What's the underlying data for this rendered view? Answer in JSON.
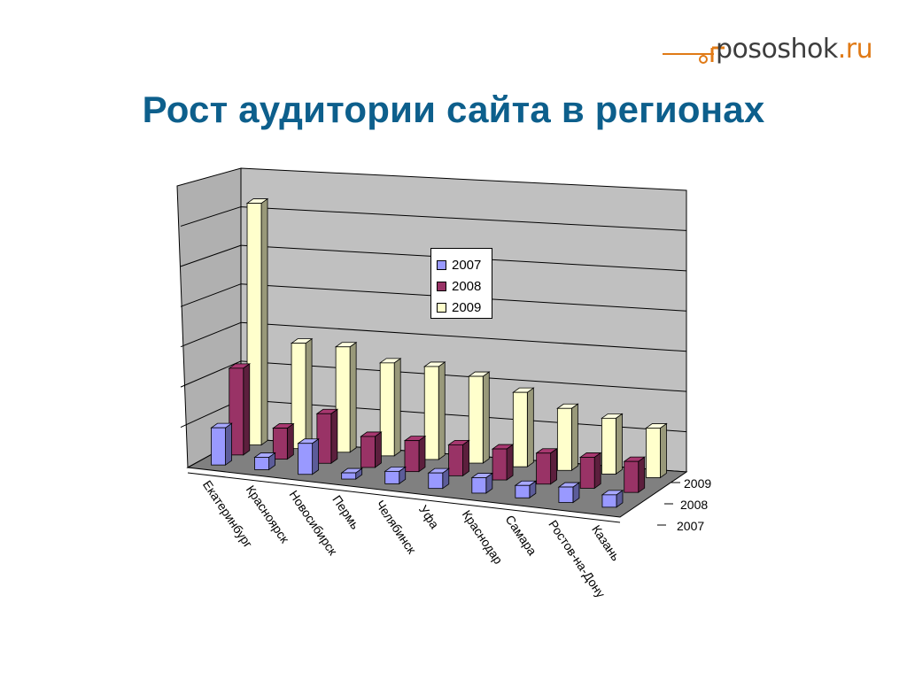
{
  "logo": {
    "text_main": "pososhok",
    "text_accent": ".ru"
  },
  "title": "Рост аудитории сайта в регионах",
  "chart_data": {
    "type": "bar",
    "subtype": "3d-clustered-columns",
    "categories": [
      "Екатеринбург",
      "Красноярск",
      "Новосибирск",
      "Пермь",
      "Челябинск",
      "Уфа",
      "Краснодар",
      "Самара",
      "Ростов-на-Дону",
      "Казань"
    ],
    "series": [
      {
        "name": "2007",
        "values": [
          12,
          4,
          10,
          2,
          4,
          5,
          5,
          4,
          5,
          4
        ],
        "color": "#9999ff"
      },
      {
        "name": "2008",
        "values": [
          28,
          10,
          16,
          10,
          10,
          10,
          10,
          10,
          10,
          10
        ],
        "color": "#993366"
      },
      {
        "name": "2009",
        "values": [
          78,
          34,
          34,
          30,
          30,
          28,
          24,
          20,
          18,
          16
        ],
        "color": "#ffffcc"
      }
    ],
    "depth_labels": [
      "2009",
      "2008",
      "2007"
    ],
    "ylim": [
      0,
      90
    ],
    "grid": true,
    "legend_position": "top-center",
    "colors": {
      "wall": "#c0c0c0",
      "floor": "#808080",
      "gridline": "#000000"
    }
  }
}
